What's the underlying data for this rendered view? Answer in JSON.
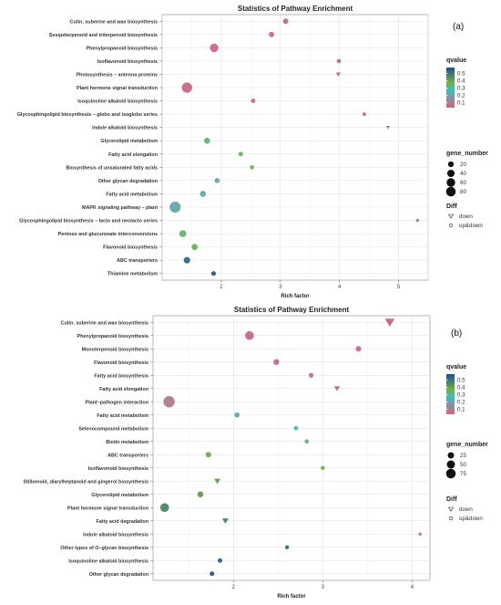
{
  "legend_titles": {
    "qvalue": "qvalue",
    "gene_number": "gene_number",
    "diff": "Diff"
  },
  "diff_labels": {
    "down": "down",
    "updown": "up&down"
  },
  "colorscale": {
    "low": "#d8627a",
    "mid": "#3fbfbe",
    "high": "#1b4f94",
    "green": "#74ae43"
  },
  "chart_data": [
    {
      "panel_label": "(a)",
      "type": "scatter",
      "title": "Statistics of Pathway Enrichment",
      "xlabel": "Rich factor",
      "ylabel": "",
      "xlim": [
        1.0,
        5.5
      ],
      "xticks": [
        2,
        3,
        4,
        5
      ],
      "grid": true,
      "legend_placement": "right",
      "qvalue_ticks": [
        0.5,
        0.4,
        0.3,
        0.2,
        0.1
      ],
      "qvalue_range": [
        0.03,
        0.58
      ],
      "gene_number_ticks": [
        20,
        40,
        60,
        80
      ],
      "points": [
        {
          "pathway": "Cutin, suberine and wax biosynthesis",
          "x": 3.09,
          "gene_number": 10,
          "qvalue": 0.06,
          "diff": "up&down"
        },
        {
          "pathway": "Sesquiterpenoid and triterpenoid biosynthesis",
          "x": 2.85,
          "gene_number": 10,
          "qvalue": 0.06,
          "diff": "up&down"
        },
        {
          "pathway": "Phenylpropanoid biosynthesis",
          "x": 1.88,
          "gene_number": 40,
          "qvalue": 0.05,
          "diff": "up&down"
        },
        {
          "pathway": "Isoflavonoid biosynthesis",
          "x": 3.99,
          "gene_number": 4,
          "qvalue": 0.06,
          "diff": "up&down"
        },
        {
          "pathway": "Photosynthesis – antenna proteins",
          "x": 3.98,
          "gene_number": 4,
          "qvalue": 0.06,
          "diff": "down"
        },
        {
          "pathway": "Plant hormone signal transduction",
          "x": 1.42,
          "gene_number": 65,
          "qvalue": 0.06,
          "diff": "up&down"
        },
        {
          "pathway": "Isoquinoline alkaloid biosynthesis",
          "x": 2.54,
          "gene_number": 5,
          "qvalue": 0.07,
          "diff": "up&down"
        },
        {
          "pathway": "Glycosphingolipid biosynthesis – globo and isoglobo series",
          "x": 4.42,
          "gene_number": 2,
          "qvalue": 0.09,
          "diff": "up&down"
        },
        {
          "pathway": "Indole alkaloid biosynthesis",
          "x": 4.82,
          "gene_number": 2,
          "qvalue": 0.15,
          "diff": "down"
        },
        {
          "pathway": "Glycerolipid metabolism",
          "x": 1.76,
          "gene_number": 14,
          "qvalue": 0.33,
          "diff": "up&down"
        },
        {
          "pathway": "Fatty acid elongation",
          "x": 2.33,
          "gene_number": 5,
          "qvalue": 0.36,
          "diff": "up&down"
        },
        {
          "pathway": "Biosynthesis of unsaturated fatty acids",
          "x": 2.52,
          "gene_number": 4,
          "qvalue": 0.36,
          "diff": "up&down"
        },
        {
          "pathway": "Other glycan degradation",
          "x": 1.93,
          "gene_number": 8,
          "qvalue": 0.22,
          "diff": "up&down"
        },
        {
          "pathway": "Fatty acid metabolism",
          "x": 1.69,
          "gene_number": 14,
          "qvalue": 0.22,
          "diff": "up&down"
        },
        {
          "pathway": "MAPK signaling pathway – plant",
          "x": 1.22,
          "gene_number": 75,
          "qvalue": 0.22,
          "diff": "up&down"
        },
        {
          "pathway": "Glycosphingolipid biosynthesis – lacto and neolacto series",
          "x": 5.32,
          "gene_number": 1,
          "qvalue": 0.12,
          "diff": "up&down"
        },
        {
          "pathway": "Pentose and glucuronate interconversions",
          "x": 1.35,
          "gene_number": 22,
          "qvalue": 0.34,
          "diff": "up&down"
        },
        {
          "pathway": "Flavonoid biosynthesis",
          "x": 1.55,
          "gene_number": 15,
          "qvalue": 0.36,
          "diff": "up&down"
        },
        {
          "pathway": "ABC transporters",
          "x": 1.42,
          "gene_number": 18,
          "qvalue": 0.52,
          "diff": "up&down"
        },
        {
          "pathway": "Thiamine metabolism",
          "x": 1.87,
          "gene_number": 6,
          "qvalue": 0.55,
          "diff": "up&down"
        }
      ]
    },
    {
      "panel_label": "(b)",
      "type": "scatter",
      "title": "Statistics of Pathway Enrichment",
      "xlabel": "Rich factor",
      "ylabel": "",
      "xlim": [
        1.1,
        4.2
      ],
      "xticks": [
        2,
        3,
        4
      ],
      "grid": true,
      "legend_placement": "right",
      "qvalue_ticks": [
        0.5,
        0.4,
        0.3,
        0.2,
        0.1
      ],
      "qvalue_range": [
        0.03,
        0.58
      ],
      "gene_number_ticks": [
        25,
        50,
        75
      ],
      "points": [
        {
          "pathway": "Cutin, suberine and wax biosynthesis",
          "x": 3.75,
          "gene_number": 35,
          "qvalue": 0.06,
          "diff": "down"
        },
        {
          "pathway": "Phenylpropanoid biosynthesis",
          "x": 2.18,
          "gene_number": 40,
          "qvalue": 0.06,
          "diff": "up&down"
        },
        {
          "pathway": "Monoterpenoid biosynthesis",
          "x": 3.4,
          "gene_number": 10,
          "qvalue": 0.05,
          "diff": "up&down"
        },
        {
          "pathway": "Flavonoid biosynthesis",
          "x": 2.48,
          "gene_number": 12,
          "qvalue": 0.06,
          "diff": "up&down"
        },
        {
          "pathway": "Fatty acid biosynthesis",
          "x": 2.87,
          "gene_number": 6,
          "qvalue": 0.07,
          "diff": "up&down"
        },
        {
          "pathway": "Fatty acid elongation",
          "x": 3.16,
          "gene_number": 8,
          "qvalue": 0.08,
          "diff": "down"
        },
        {
          "pathway": "Plant–pathogen interaction",
          "x": 1.28,
          "gene_number": 75,
          "qvalue": 0.1,
          "diff": "up&down"
        },
        {
          "pathway": "Fatty acid metabolism",
          "x": 2.04,
          "gene_number": 8,
          "qvalue": 0.22,
          "diff": "up&down"
        },
        {
          "pathway": "Selenocompound metabolism",
          "x": 2.7,
          "gene_number": 4,
          "qvalue": 0.3,
          "diff": "up&down"
        },
        {
          "pathway": "Biotin metabolism",
          "x": 2.82,
          "gene_number": 4,
          "qvalue": 0.34,
          "diff": "up&down"
        },
        {
          "pathway": "ABC transporters",
          "x": 1.72,
          "gene_number": 10,
          "qvalue": 0.36,
          "diff": "up&down"
        },
        {
          "pathway": "Isoflavonoid biosynthesis",
          "x": 3.0,
          "gene_number": 3,
          "qvalue": 0.38,
          "diff": "up&down"
        },
        {
          "pathway": "Stilbenoid, diarylheptanoid and gingerol biosynthesis",
          "x": 1.82,
          "gene_number": 10,
          "qvalue": 0.4,
          "diff": "down"
        },
        {
          "pathway": "Glycerolipid metabolism",
          "x": 1.63,
          "gene_number": 12,
          "qvalue": 0.42,
          "diff": "up&down"
        },
        {
          "pathway": "Plant hormone signal transduction",
          "x": 1.23,
          "gene_number": 40,
          "qvalue": 0.46,
          "diff": "up&down"
        },
        {
          "pathway": "Fatty acid degradation",
          "x": 1.91,
          "gene_number": 10,
          "qvalue": 0.45,
          "diff": "down"
        },
        {
          "pathway": "Indole alkaloid biosynthesis",
          "x": 4.09,
          "gene_number": 1,
          "qvalue": 0.1,
          "diff": "up&down"
        },
        {
          "pathway": "Other types of O–glycan biosynthesis",
          "x": 2.6,
          "gene_number": 3,
          "qvalue": 0.52,
          "diff": "up&down"
        },
        {
          "pathway": "Isoquinoline alkaloid biosynthesis",
          "x": 1.85,
          "gene_number": 5,
          "qvalue": 0.54,
          "diff": "up&down"
        },
        {
          "pathway": "Other glycan degradation",
          "x": 1.76,
          "gene_number": 5,
          "qvalue": 0.56,
          "diff": "up&down"
        }
      ]
    }
  ]
}
